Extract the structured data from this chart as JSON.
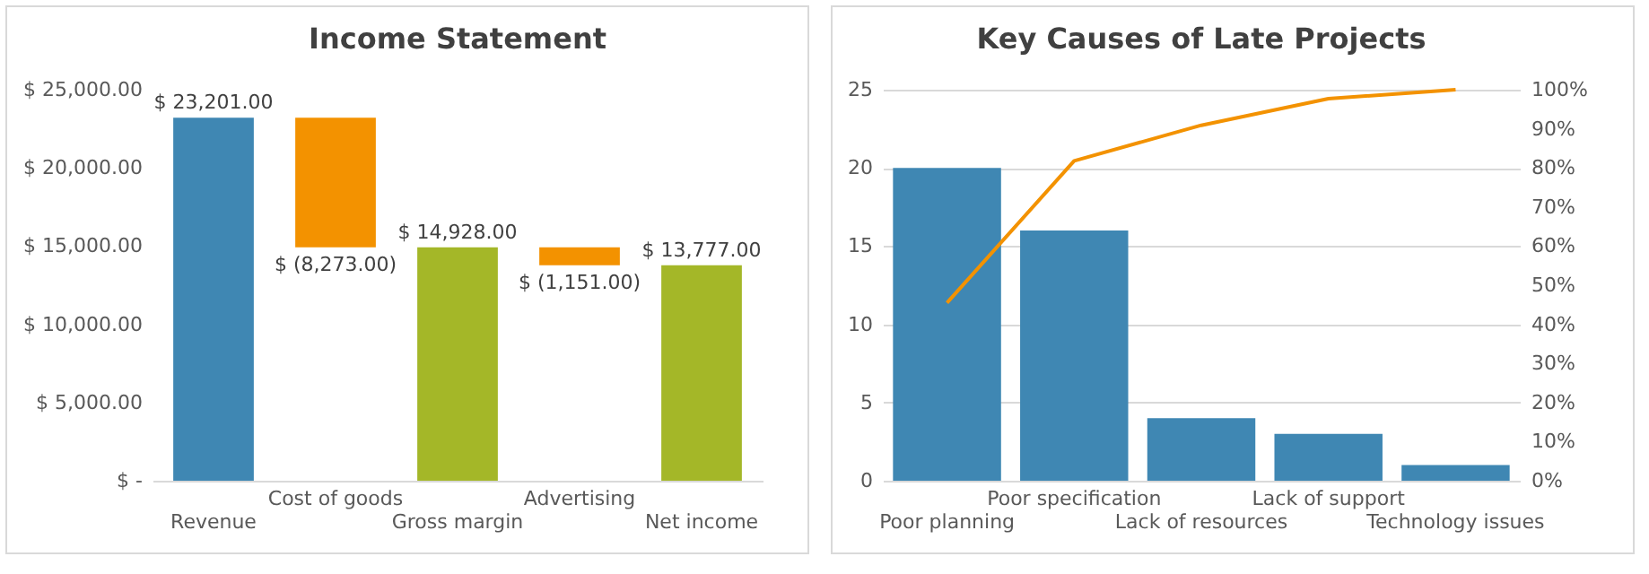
{
  "chart_data": [
    {
      "type": "bar",
      "title": "Income Statement",
      "categories": [
        "Revenue",
        "Cost of goods",
        "Gross margin",
        "Advertising",
        "Net income"
      ],
      "values": [
        23201,
        -8273,
        14928,
        -1151,
        13777
      ],
      "base": [
        0,
        23201,
        0,
        14928,
        0
      ],
      "colors": [
        "#3f87b3",
        "#f39200",
        "#a4b728",
        "#f39200",
        "#a4b728"
      ],
      "value_labels": [
        "$ 23,201.00",
        "$ (8,273.00)",
        "$ 14,928.00",
        "$ (1,151.00)",
        "$ 13,777.00"
      ],
      "ylim": [
        0,
        25000
      ],
      "yticks": [
        {
          "value": 0,
          "label": "$ -"
        },
        {
          "value": 5000,
          "label": "$ 5,000.00"
        },
        {
          "value": 10000,
          "label": "$ 10,000.00"
        },
        {
          "value": 15000,
          "label": "$ 15,000.00"
        },
        {
          "value": 20000,
          "label": "$ 20,000.00"
        },
        {
          "value": 25000,
          "label": "$ 25,000.00"
        }
      ]
    },
    {
      "type": "bar",
      "title": "Key Causes of Late Projects",
      "categories": [
        "Poor planning",
        "Poor specification",
        "Lack of resources",
        "Lack of support",
        "Technology issues"
      ],
      "series": [
        {
          "type": "bar",
          "color": "#3f87b3",
          "values": [
            20,
            16,
            4,
            3,
            1
          ]
        },
        {
          "type": "line",
          "axis": "y2",
          "color": "#f39200",
          "values": [
            45.5,
            81.8,
            90.9,
            97.7,
            100
          ]
        }
      ],
      "ylim": [
        0,
        25
      ],
      "yticks": [
        0,
        5,
        10,
        15,
        20,
        25
      ],
      "y2lim": [
        0,
        100
      ],
      "y2ticks": [
        {
          "value": 0,
          "label": "0%"
        },
        {
          "value": 10,
          "label": "10%"
        },
        {
          "value": 20,
          "label": "20%"
        },
        {
          "value": 30,
          "label": "30%"
        },
        {
          "value": 40,
          "label": "40%"
        },
        {
          "value": 50,
          "label": "50%"
        },
        {
          "value": 60,
          "label": "60%"
        },
        {
          "value": 70,
          "label": "70%"
        },
        {
          "value": 80,
          "label": "80%"
        },
        {
          "value": 90,
          "label": "90%"
        },
        {
          "value": 100,
          "label": "100%"
        }
      ],
      "grid": "y"
    }
  ]
}
